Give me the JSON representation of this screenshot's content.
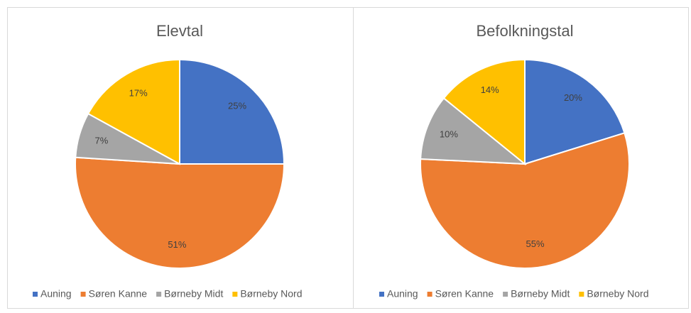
{
  "chart_data": [
    {
      "type": "pie",
      "title": "Elevtal",
      "categories": [
        "Auning",
        "Søren Kanne",
        "Børneby Midt",
        "Børneby Nord"
      ],
      "values": [
        25,
        51,
        7,
        17
      ],
      "value_labels": [
        "25%",
        "51%",
        "7%",
        "17%"
      ],
      "colors": [
        "#4472c4",
        "#ed7d31",
        "#a5a5a5",
        "#ffc000"
      ]
    },
    {
      "type": "pie",
      "title": "Befolkningstal",
      "categories": [
        "Auning",
        "Søren Kanne",
        "Børneby Midt",
        "Børneby Nord"
      ],
      "values": [
        20,
        55,
        10,
        14
      ],
      "value_labels": [
        "20%",
        "55%",
        "10%",
        "14%"
      ],
      "colors": [
        "#4472c4",
        "#ed7d31",
        "#a5a5a5",
        "#ffc000"
      ]
    }
  ]
}
